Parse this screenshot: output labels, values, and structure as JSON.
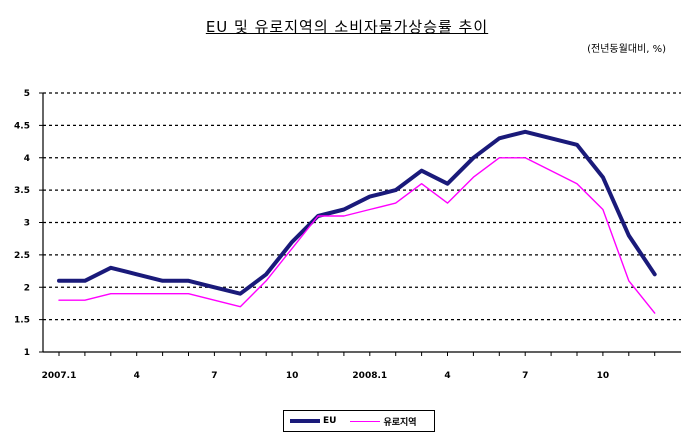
{
  "chart_data": {
    "type": "line",
    "title": "EU 및 유로지역의 소비자물가상승률 추이",
    "subtitle": "(전년동월대비, %)",
    "x": [
      "2007.1",
      "2007.2",
      "2007.3",
      "2007.4",
      "2007.5",
      "2007.6",
      "2007.7",
      "2007.8",
      "2007.9",
      "2007.10",
      "2007.11",
      "2007.12",
      "2008.1",
      "2008.2",
      "2008.3",
      "2008.4",
      "2008.5",
      "2008.6",
      "2008.7",
      "2008.8",
      "2008.9",
      "2008.10",
      "2008.11",
      "2008.12"
    ],
    "x_tick_labels": [
      "2007.1",
      "",
      "",
      "4",
      "",
      "",
      "7",
      "",
      "",
      "10",
      "",
      "",
      "2008.1",
      "",
      "",
      "4",
      "",
      "",
      "7",
      "",
      "",
      "10",
      "",
      ""
    ],
    "ylim": [
      1,
      5
    ],
    "y_ticks": [
      "5",
      "4.5",
      "4",
      "3.5",
      "3",
      "2.5",
      "2",
      "1.5",
      "1"
    ],
    "grid": true,
    "legend_placement": "bottom",
    "series": [
      {
        "name": "EU",
        "color": "#1a1a7a",
        "values": [
          2.1,
          2.1,
          2.3,
          2.2,
          2.1,
          2.1,
          2.0,
          1.9,
          2.2,
          2.7,
          3.1,
          3.2,
          3.4,
          3.5,
          3.8,
          3.6,
          4.0,
          4.3,
          4.4,
          4.3,
          4.2,
          3.7,
          2.8,
          2.2
        ]
      },
      {
        "name": "유로지역",
        "color": "#ff00ff",
        "values": [
          1.8,
          1.8,
          1.9,
          1.9,
          1.9,
          1.9,
          1.8,
          1.7,
          2.1,
          2.6,
          3.1,
          3.1,
          3.2,
          3.3,
          3.6,
          3.3,
          3.7,
          4.0,
          4.0,
          3.8,
          3.6,
          3.2,
          2.1,
          1.6
        ]
      }
    ]
  }
}
